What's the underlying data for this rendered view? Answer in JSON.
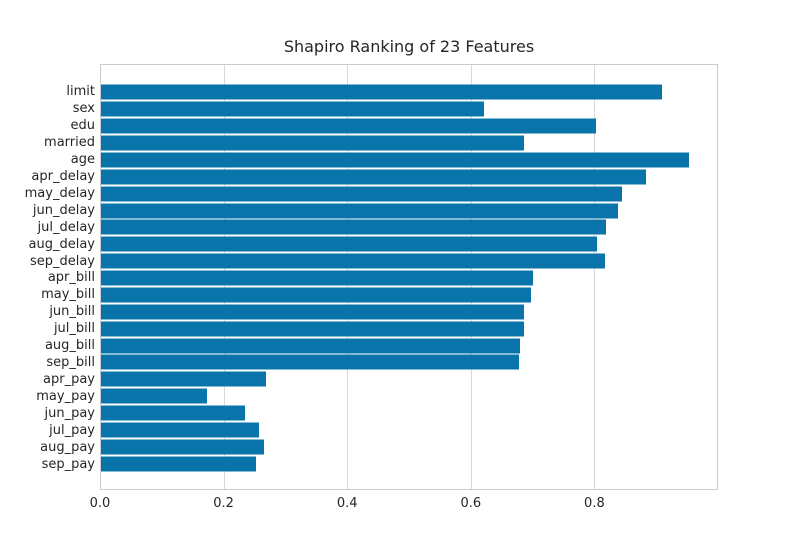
{
  "title": "Shapiro Ranking of 23 Features",
  "colors": {
    "bar": "#0874a9",
    "grid": "#d9d9d9",
    "spine": "#cccccc",
    "text": "#262626",
    "background": "#ffffff"
  },
  "chart_data": {
    "type": "bar",
    "orientation": "horizontal",
    "title": "Shapiro Ranking of 23 Features",
    "categories": [
      "limit",
      "sex",
      "edu",
      "married",
      "age",
      "apr_delay",
      "may_delay",
      "jun_delay",
      "jul_delay",
      "aug_delay",
      "sep_delay",
      "apr_bill",
      "may_bill",
      "jun_bill",
      "jul_bill",
      "aug_bill",
      "sep_bill",
      "apr_pay",
      "may_pay",
      "jun_pay",
      "jul_pay",
      "aug_pay",
      "sep_pay"
    ],
    "values": [
      0.911,
      0.622,
      0.803,
      0.686,
      0.955,
      0.884,
      0.845,
      0.84,
      0.819,
      0.806,
      0.818,
      0.702,
      0.698,
      0.686,
      0.686,
      0.681,
      0.679,
      0.268,
      0.172,
      0.233,
      0.257,
      0.265,
      0.252
    ],
    "xlabel": "",
    "ylabel": "",
    "xlim": [
      0.0,
      1.0
    ],
    "xticks": [
      0.0,
      0.2,
      0.4,
      0.6,
      0.8
    ],
    "xtick_labels": [
      "0.0",
      "0.2",
      "0.4",
      "0.6",
      "0.8"
    ],
    "grid": "vertical",
    "legend": "none",
    "bar_color": "#0874a9"
  }
}
